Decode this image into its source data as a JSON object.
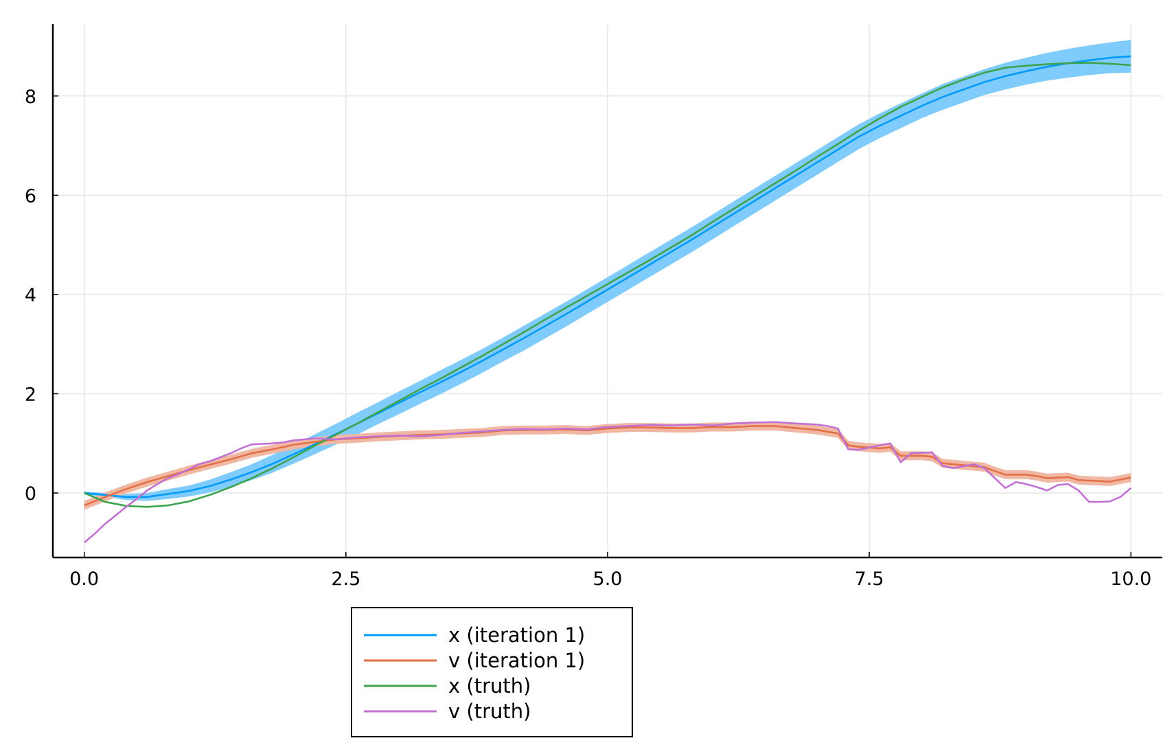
{
  "chart_data": {
    "type": "line",
    "title": "",
    "xlabel": "",
    "ylabel": "",
    "xlim": [
      -0.3,
      10.3
    ],
    "ylim": [
      -1.3,
      9.45
    ],
    "grid": true,
    "legend_position": "bottom-center, outside plot",
    "x_ticks": [
      0,
      2.5,
      5,
      7.5,
      10
    ],
    "x_tick_labels": [
      "0.0",
      "2.5",
      "5.0",
      "7.5",
      "10.0"
    ],
    "y_ticks": [
      0,
      2,
      4,
      6,
      8
    ],
    "y_tick_labels": [
      "0",
      "2",
      "4",
      "6",
      "8"
    ],
    "series": [
      {
        "name": "x (iteration 1)",
        "color": "#009af9",
        "band_color": "#7fcbfc",
        "x": [
          0,
          0.2,
          0.4,
          0.6,
          0.8,
          1.0,
          1.2,
          1.4,
          1.6,
          1.8,
          2.0,
          2.2,
          2.4,
          2.6,
          2.8,
          3.0,
          3.2,
          3.4,
          3.6,
          3.8,
          4.0,
          4.2,
          4.4,
          4.6,
          4.8,
          5.0,
          5.2,
          5.4,
          5.6,
          5.8,
          6.0,
          6.2,
          6.4,
          6.6,
          6.8,
          7.0,
          7.2,
          7.4,
          7.6,
          7.8,
          8.0,
          8.2,
          8.4,
          8.6,
          8.8,
          9.0,
          9.2,
          9.4,
          9.6,
          9.8,
          10.0
        ],
        "values": [
          0,
          -0.04,
          -0.08,
          -0.08,
          -0.02,
          0.04,
          0.14,
          0.27,
          0.42,
          0.59,
          0.78,
          0.98,
          1.18,
          1.39,
          1.6,
          1.81,
          2.02,
          2.23,
          2.44,
          2.66,
          2.89,
          3.12,
          3.36,
          3.6,
          3.85,
          4.1,
          4.35,
          4.6,
          4.85,
          5.1,
          5.36,
          5.62,
          5.88,
          6.14,
          6.4,
          6.66,
          6.92,
          7.18,
          7.4,
          7.6,
          7.8,
          7.98,
          8.13,
          8.28,
          8.4,
          8.5,
          8.59,
          8.66,
          8.72,
          8.77,
          8.8
        ],
        "band_half_width": [
          0.03,
          0.04,
          0.06,
          0.08,
          0.1,
          0.11,
          0.13,
          0.15,
          0.16,
          0.18,
          0.19,
          0.2,
          0.21,
          0.22,
          0.22,
          0.23,
          0.23,
          0.24,
          0.24,
          0.24,
          0.24,
          0.25,
          0.25,
          0.25,
          0.25,
          0.25,
          0.25,
          0.25,
          0.25,
          0.25,
          0.25,
          0.25,
          0.25,
          0.25,
          0.25,
          0.25,
          0.25,
          0.25,
          0.25,
          0.25,
          0.25,
          0.26,
          0.26,
          0.26,
          0.27,
          0.27,
          0.28,
          0.29,
          0.3,
          0.31,
          0.33
        ]
      },
      {
        "name": "v (iteration 1)",
        "color": "#e26f46",
        "band_color": "#f0b7a2",
        "x": [
          0,
          0.2,
          0.4,
          0.6,
          0.8,
          1.0,
          1.2,
          1.4,
          1.6,
          1.8,
          2.0,
          2.2,
          2.4,
          2.6,
          2.8,
          3.0,
          3.2,
          3.4,
          3.6,
          3.8,
          4.0,
          4.2,
          4.4,
          4.6,
          4.8,
          5.0,
          5.2,
          5.4,
          5.6,
          5.8,
          6.0,
          6.2,
          6.4,
          6.6,
          6.8,
          7.0,
          7.2,
          7.3,
          7.4,
          7.6,
          7.7,
          7.8,
          8.0,
          8.1,
          8.2,
          8.4,
          8.6,
          8.7,
          8.8,
          9.0,
          9.1,
          9.2,
          9.4,
          9.5,
          9.6,
          9.8,
          10.0
        ],
        "values": [
          -0.25,
          -0.08,
          0.08,
          0.22,
          0.34,
          0.46,
          0.57,
          0.68,
          0.8,
          0.88,
          0.97,
          1.03,
          1.08,
          1.1,
          1.13,
          1.15,
          1.17,
          1.18,
          1.2,
          1.22,
          1.26,
          1.27,
          1.27,
          1.28,
          1.26,
          1.3,
          1.32,
          1.32,
          1.31,
          1.31,
          1.33,
          1.33,
          1.35,
          1.35,
          1.31,
          1.27,
          1.2,
          0.96,
          0.93,
          0.9,
          0.92,
          0.75,
          0.75,
          0.73,
          0.6,
          0.56,
          0.52,
          0.44,
          0.37,
          0.37,
          0.34,
          0.3,
          0.32,
          0.26,
          0.25,
          0.23,
          0.31
        ]
      },
      {
        "name": "x (truth)",
        "color": "#3da44d",
        "x": [
          0,
          0.2,
          0.4,
          0.6,
          0.8,
          1.0,
          1.2,
          1.4,
          1.6,
          1.8,
          2.0,
          2.2,
          2.4,
          2.6,
          2.8,
          3.0,
          3.2,
          3.4,
          3.6,
          3.8,
          4.0,
          4.2,
          4.4,
          4.6,
          4.8,
          5.0,
          5.2,
          5.4,
          5.6,
          5.8,
          6.0,
          6.2,
          6.4,
          6.6,
          6.8,
          7.0,
          7.2,
          7.4,
          7.6,
          7.8,
          8.0,
          8.2,
          8.4,
          8.6,
          8.8,
          9.0,
          9.2,
          9.4,
          9.6,
          9.8,
          10.0
        ],
        "values": [
          0,
          -0.18,
          -0.26,
          -0.28,
          -0.25,
          -0.17,
          -0.04,
          0.12,
          0.3,
          0.5,
          0.72,
          0.95,
          1.17,
          1.39,
          1.62,
          1.85,
          2.08,
          2.3,
          2.53,
          2.76,
          3.0,
          3.24,
          3.49,
          3.73,
          3.97,
          4.21,
          4.45,
          4.69,
          4.94,
          5.19,
          5.46,
          5.72,
          5.98,
          6.24,
          6.5,
          6.77,
          7.03,
          7.3,
          7.55,
          7.78,
          7.98,
          8.17,
          8.33,
          8.47,
          8.57,
          8.61,
          8.64,
          8.66,
          8.67,
          8.65,
          8.62
        ]
      },
      {
        "name": "v (truth)",
        "color": "#c271d2",
        "x": [
          0,
          0.1,
          0.2,
          0.3,
          0.4,
          0.5,
          0.6,
          0.7,
          0.8,
          0.9,
          1.0,
          1.1,
          1.2,
          1.3,
          1.4,
          1.5,
          1.6,
          1.7,
          1.8,
          1.9,
          2.0,
          2.2,
          2.4,
          2.6,
          2.8,
          3.0,
          3.2,
          3.4,
          3.6,
          3.8,
          4.0,
          4.2,
          4.4,
          4.6,
          4.8,
          5.0,
          5.2,
          5.4,
          5.6,
          5.8,
          6.0,
          6.2,
          6.4,
          6.6,
          6.8,
          7.0,
          7.1,
          7.2,
          7.3,
          7.4,
          7.6,
          7.7,
          7.8,
          7.9,
          8.1,
          8.2,
          8.3,
          8.5,
          8.6,
          8.7,
          8.8,
          8.9,
          9.0,
          9.1,
          9.2,
          9.3,
          9.4,
          9.5,
          9.6,
          9.7,
          9.8,
          9.9,
          10.0
        ],
        "values": [
          -1.0,
          -0.82,
          -0.62,
          -0.45,
          -0.28,
          -0.12,
          0.05,
          0.18,
          0.3,
          0.38,
          0.48,
          0.58,
          0.64,
          0.72,
          0.8,
          0.9,
          0.98,
          0.99,
          1.0,
          1.02,
          1.06,
          1.1,
          1.08,
          1.12,
          1.14,
          1.16,
          1.14,
          1.17,
          1.21,
          1.24,
          1.27,
          1.29,
          1.28,
          1.3,
          1.28,
          1.33,
          1.35,
          1.37,
          1.36,
          1.38,
          1.36,
          1.4,
          1.42,
          1.43,
          1.4,
          1.38,
          1.35,
          1.3,
          0.88,
          0.87,
          0.96,
          1.0,
          0.62,
          0.8,
          0.82,
          0.55,
          0.5,
          0.58,
          0.5,
          0.3,
          0.1,
          0.22,
          0.18,
          0.12,
          0.05,
          0.16,
          0.18,
          0.05,
          -0.18,
          -0.18,
          -0.17,
          -0.08,
          0.1
        ]
      }
    ]
  }
}
